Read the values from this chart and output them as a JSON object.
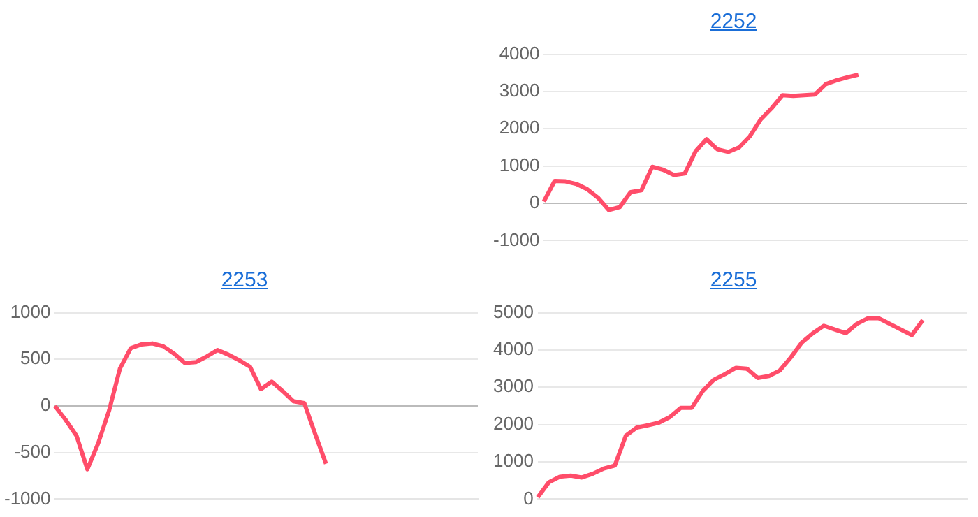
{
  "chart_data": [
    {
      "type": "line",
      "title": "2252",
      "categories": [
        null,
        null,
        null,
        null,
        null,
        null,
        null,
        null,
        null,
        null,
        null,
        null,
        null,
        null,
        null,
        null,
        null,
        null,
        null,
        null,
        null,
        null,
        null,
        null,
        null,
        null,
        null,
        null,
        null,
        null,
        null,
        null,
        null,
        null,
        null,
        null,
        null,
        null,
        null,
        null
      ],
      "series": [
        {
          "color": "#ff4d6a",
          "values": [
            50,
            600,
            590,
            520,
            380,
            150,
            -180,
            -100,
            300,
            350,
            980,
            900,
            760,
            800,
            1400,
            1720,
            1450,
            1380,
            1500,
            1800,
            2250,
            2550,
            2900,
            2880,
            2900,
            2920,
            3200,
            3300,
            3380,
            3450,
            null,
            null,
            null,
            null,
            null,
            null,
            null,
            null,
            null,
            null
          ]
        }
      ],
      "ylim": [
        -1000,
        4000
      ],
      "yticks": [
        -1000,
        0,
        1000,
        2000,
        3000,
        4000
      ],
      "grid": "y",
      "tick_labels": "y"
    },
    {
      "type": "line",
      "title": "2253",
      "categories": [
        null,
        null,
        null,
        null,
        null,
        null,
        null,
        null,
        null,
        null,
        null,
        null,
        null,
        null,
        null,
        null,
        null,
        null,
        null,
        null,
        null,
        null,
        null,
        null,
        null,
        null,
        null,
        null,
        null,
        null,
        null,
        null,
        null,
        null,
        null,
        null,
        null,
        null,
        null,
        null
      ],
      "series": [
        {
          "color": "#ff4d6a",
          "values": [
            0,
            -150,
            -320,
            -680,
            -400,
            -50,
            400,
            620,
            660,
            670,
            640,
            560,
            460,
            470,
            530,
            600,
            550,
            490,
            420,
            180,
            260,
            160,
            50,
            30,
            -300,
            -620,
            null,
            null,
            null,
            null,
            null,
            null,
            null,
            null,
            null,
            null,
            null,
            null,
            null,
            null
          ]
        }
      ],
      "ylim": [
        -1000,
        1000
      ],
      "yticks": [
        -1000,
        -500,
        0,
        500,
        1000
      ],
      "grid": "y",
      "tick_labels": "y"
    },
    {
      "type": "line",
      "title": "2255",
      "categories": [
        null,
        null,
        null,
        null,
        null,
        null,
        null,
        null,
        null,
        null,
        null,
        null,
        null,
        null,
        null,
        null,
        null,
        null,
        null,
        null,
        null,
        null,
        null,
        null,
        null,
        null,
        null,
        null,
        null,
        null,
        null,
        null,
        null,
        null,
        null,
        null,
        null,
        null,
        null,
        null
      ],
      "series": [
        {
          "color": "#ff4d6a",
          "values": [
            50,
            450,
            600,
            630,
            580,
            680,
            820,
            900,
            1700,
            1920,
            1980,
            2050,
            2200,
            2450,
            2450,
            2900,
            3200,
            3350,
            3520,
            3500,
            3250,
            3300,
            3450,
            3800,
            4200,
            4450,
            4650,
            4550,
            4450,
            4700,
            4850,
            4850,
            4700,
            4550,
            4400,
            4800,
            null,
            null,
            null,
            null
          ]
        }
      ],
      "ylim": [
        0,
        5000
      ],
      "yticks": [
        0,
        1000,
        2000,
        3000,
        4000,
        5000
      ],
      "grid": "y",
      "tick_labels": "y"
    }
  ]
}
